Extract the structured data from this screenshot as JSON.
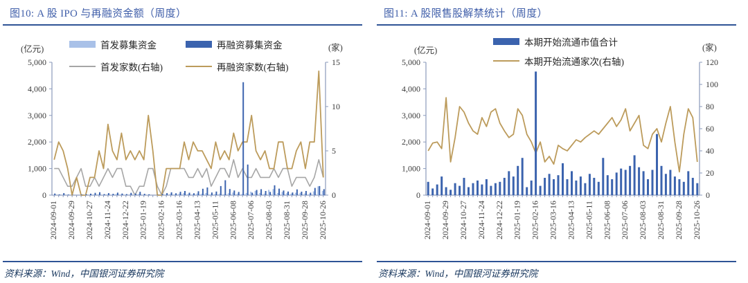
{
  "colors": {
    "title": "#3f5ea9",
    "rule": "#2e5395",
    "axis": "#8a99bb",
    "tick_text": "#3a3a3a",
    "footer_text": "#17365d",
    "bar_light": "#a9c1e8",
    "bar_dark": "#3b63ae",
    "line_gray": "#a6a6a6",
    "line_tan": "#bc9b5b"
  },
  "panels": [
    {
      "title": "图10: A 股 IPO 与再融资金额（周度）",
      "left_axis_unit": "(亿元)",
      "right_axis_unit": "(家)",
      "source": "资料来源：Wind，中国银河证券研究院"
    },
    {
      "title": "图11: A 股限售股解禁统计（周度）",
      "left_axis_unit": "(亿元)",
      "right_axis_unit": "(家)",
      "source": "资料来源：Wind，中国银河证券研究院"
    }
  ],
  "chart_data": [
    {
      "type": "bar",
      "subtype": "combo-bar-line-dual-axis",
      "title": "A 股 IPO 与再融资金额（周度）",
      "x_label_every": 4,
      "grid": false,
      "legend_position": "top",
      "left_axis": {
        "unit": "(亿元)",
        "min": 0,
        "max": 5000,
        "step": 1000
      },
      "right_axis": {
        "unit": "(家)",
        "min": 0,
        "max": 15,
        "step": 5
      },
      "categories": [
        "2024-09-01",
        "2024-09-08",
        "2024-09-15",
        "2024-09-22",
        "2024-09-29",
        "2024-10-06",
        "2024-10-13",
        "2024-10-20",
        "2024-10-27",
        "2024-11-03",
        "2024-11-10",
        "2024-11-17",
        "2024-11-24",
        "2024-12-01",
        "2024-12-08",
        "2024-12-15",
        "2024-12-22",
        "2024-12-29",
        "2025-01-05",
        "2025-01-12",
        "2025-01-19",
        "2025-01-26",
        "2025-02-02",
        "2025-02-09",
        "2025-02-16",
        "2025-02-23",
        "2025-03-02",
        "2025-03-09",
        "2025-03-16",
        "2025-03-23",
        "2025-03-30",
        "2025-04-06",
        "2025-04-13",
        "2025-04-20",
        "2025-04-27",
        "2025-05-04",
        "2025-05-11",
        "2025-05-18",
        "2025-05-25",
        "2025-06-01",
        "2025-06-08",
        "2025-06-15",
        "2025-06-22",
        "2025-06-29",
        "2025-07-06",
        "2025-07-13",
        "2025-07-20",
        "2025-07-27",
        "2025-08-03",
        "2025-08-10",
        "2025-08-17",
        "2025-08-24",
        "2025-08-31",
        "2025-09-07",
        "2025-09-14",
        "2025-09-21",
        "2025-09-28",
        "2025-10-05",
        "2025-10-12",
        "2025-10-19",
        "2025-10-26"
      ],
      "series": [
        {
          "name": "首发募集资金",
          "kind": "bar",
          "axis": "left",
          "color_key": "bar_light",
          "values": [
            15,
            0,
            10,
            8,
            0,
            0,
            5,
            10,
            20,
            25,
            35,
            15,
            30,
            20,
            45,
            25,
            15,
            35,
            25,
            50,
            15,
            10,
            0,
            0,
            10,
            25,
            45,
            35,
            55,
            70,
            45,
            35,
            60,
            50,
            80,
            25,
            45,
            55,
            35,
            70,
            100,
            55,
            45,
            80,
            130,
            160,
            80,
            55,
            200,
            230,
            80,
            120,
            70,
            55,
            90,
            80,
            60,
            35,
            140,
            330,
            160
          ]
        },
        {
          "name": "再融资募集资金",
          "kind": "bar",
          "axis": "left",
          "color_key": "bar_dark",
          "values": [
            60,
            25,
            75,
            20,
            10,
            0,
            20,
            30,
            55,
            85,
            110,
            40,
            75,
            50,
            95,
            60,
            40,
            85,
            60,
            125,
            50,
            30,
            0,
            10,
            40,
            75,
            105,
            70,
            125,
            155,
            90,
            70,
            145,
            240,
            290,
            100,
            135,
            340,
            560,
            230,
            175,
            120,
            4250,
            1150,
            90,
            195,
            225,
            155,
            120,
            370,
            245,
            175,
            135,
            100,
            215,
            130,
            155,
            90,
            270,
            340,
            225
          ]
        },
        {
          "name": "首发家数(右轴)",
          "kind": "line",
          "axis": "right",
          "color_key": "line_gray",
          "width": 1.6,
          "values": [
            3,
            3,
            2,
            1,
            1,
            2,
            3,
            1,
            1,
            2,
            1,
            2,
            3,
            2,
            3,
            3,
            1,
            1,
            0,
            1,
            1,
            3,
            3,
            1,
            0,
            1,
            3,
            3,
            3,
            3,
            2,
            2,
            3,
            2,
            3,
            1,
            2,
            3,
            3,
            2,
            4,
            2,
            3,
            2,
            2,
            3,
            2,
            2,
            2,
            3,
            2,
            3,
            3,
            1,
            2,
            2,
            2,
            1,
            2,
            4,
            2
          ]
        },
        {
          "name": "再融资家数(右轴)",
          "kind": "line",
          "axis": "right",
          "color_key": "line_tan",
          "width": 1.8,
          "values": [
            4,
            6,
            5,
            3,
            0,
            2,
            0,
            0,
            2,
            2,
            5,
            3,
            8,
            5,
            4,
            7,
            4,
            5,
            4,
            5,
            4,
            9,
            5,
            0,
            0,
            3,
            3,
            3,
            3,
            6,
            4,
            6,
            5,
            5,
            4,
            3,
            6,
            4,
            5,
            4,
            7,
            5,
            6,
            6,
            9,
            5,
            4,
            5,
            3,
            3,
            6,
            6,
            3,
            3,
            5,
            6,
            3,
            6,
            6,
            14,
            2
          ]
        }
      ]
    },
    {
      "type": "bar",
      "subtype": "combo-bar-line-dual-axis",
      "title": "A 股限售股解禁统计（周度）",
      "x_label_every": 4,
      "grid": false,
      "legend_position": "top",
      "left_axis": {
        "unit": "(亿元)",
        "min": 0,
        "max": 5000,
        "step": 1000
      },
      "right_axis": {
        "unit": "(家)",
        "min": 0,
        "max": 120,
        "step": 20
      },
      "categories": [
        "2024-09-01",
        "2024-09-08",
        "2024-09-15",
        "2024-09-22",
        "2024-09-29",
        "2024-10-06",
        "2024-10-13",
        "2024-10-20",
        "2024-10-27",
        "2024-11-03",
        "2024-11-10",
        "2024-11-17",
        "2024-11-24",
        "2024-12-01",
        "2024-12-08",
        "2024-12-15",
        "2024-12-22",
        "2024-12-29",
        "2025-01-05",
        "2025-01-12",
        "2025-01-19",
        "2025-01-26",
        "2025-02-02",
        "2025-02-09",
        "2025-02-16",
        "2025-02-23",
        "2025-03-02",
        "2025-03-09",
        "2025-03-16",
        "2025-03-23",
        "2025-03-30",
        "2025-04-06",
        "2025-04-13",
        "2025-04-20",
        "2025-04-27",
        "2025-05-04",
        "2025-05-11",
        "2025-05-18",
        "2025-05-25",
        "2025-06-01",
        "2025-06-08",
        "2025-06-15",
        "2025-06-22",
        "2025-06-29",
        "2025-07-06",
        "2025-07-13",
        "2025-07-20",
        "2025-07-27",
        "2025-08-03",
        "2025-08-10",
        "2025-08-17",
        "2025-08-24",
        "2025-08-31",
        "2025-09-07",
        "2025-09-14",
        "2025-09-21",
        "2025-09-28",
        "2025-10-05",
        "2025-10-12",
        "2025-10-19",
        "2025-10-26"
      ],
      "series": [
        {
          "name": "本期开始流通市值合计",
          "kind": "bar",
          "axis": "left",
          "color_key": "bar_dark",
          "values": [
            500,
            250,
            400,
            700,
            300,
            200,
            450,
            350,
            650,
            300,
            450,
            550,
            400,
            600,
            350,
            450,
            500,
            650,
            900,
            700,
            1100,
            1400,
            300,
            550,
            4650,
            350,
            650,
            800,
            600,
            750,
            1200,
            600,
            900,
            550,
            700,
            450,
            800,
            650,
            500,
            1400,
            750,
            600,
            850,
            1000,
            950,
            1100,
            1500,
            1050,
            900,
            600,
            950,
            2300,
            1100,
            800,
            950,
            700,
            600,
            500,
            900,
            650,
            450
          ]
        },
        {
          "name": "本期开始流通家次(右轴)",
          "kind": "line",
          "axis": "right",
          "color_key": "line_tan",
          "width": 1.8,
          "values": [
            40,
            47,
            48,
            42,
            88,
            30,
            52,
            80,
            75,
            65,
            58,
            55,
            70,
            62,
            75,
            78,
            65,
            58,
            52,
            55,
            78,
            72,
            55,
            48,
            38,
            48,
            30,
            35,
            28,
            45,
            42,
            40,
            45,
            50,
            48,
            52,
            55,
            58,
            55,
            60,
            65,
            70,
            62,
            68,
            78,
            58,
            65,
            72,
            45,
            42,
            55,
            60,
            48,
            65,
            80,
            48,
            21,
            55,
            78,
            70,
            30
          ]
        }
      ]
    }
  ]
}
